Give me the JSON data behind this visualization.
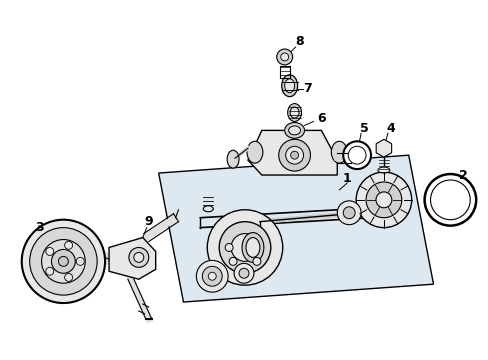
{
  "bg_color": "#ffffff",
  "line_color": "#000000",
  "fig_width": 4.89,
  "fig_height": 3.6,
  "dpi": 100,
  "block_fill": "#dde8f0",
  "part_fill": "#e8e8e8"
}
